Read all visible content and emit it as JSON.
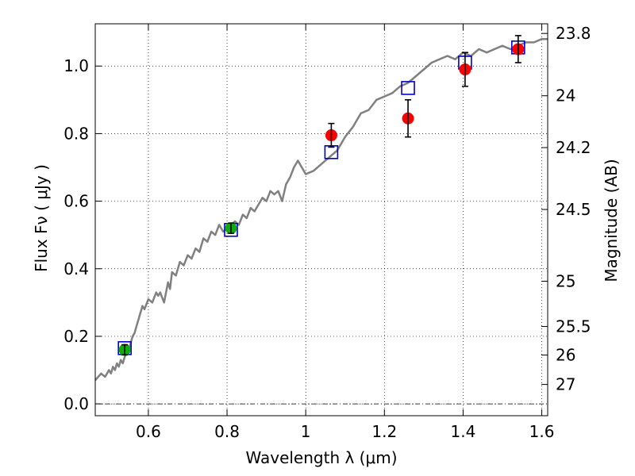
{
  "chart_data": {
    "type": "scatter",
    "xlabel": "Wavelength  λ (μm)",
    "ylabel": "Flux  Fν  ( μJy )",
    "y2label": "Magnitude (AB)",
    "xlim": [
      0.465,
      1.615
    ],
    "ylim": [
      -0.035,
      1.125
    ],
    "grid": true,
    "x_ticks": [
      0.6,
      0.8,
      1.0,
      1.2,
      1.4,
      1.6
    ],
    "x_tick_labels": [
      "0.6",
      "0.8",
      "1",
      "1.2",
      "1.4",
      "1.6"
    ],
    "y_ticks": [
      0.0,
      0.2,
      0.4,
      0.6,
      0.8,
      1.0
    ],
    "y_tick_labels": [
      "0.0",
      "0.2",
      "0.4",
      "0.6",
      "0.8",
      "1.0"
    ],
    "mag_ticks": [
      23.8,
      24,
      24.2,
      24.5,
      25,
      25.5,
      26,
      27
    ],
    "mag_tick_labels": [
      "23.8",
      "24",
      "24.2",
      "24.5",
      "25",
      "25.5",
      "26",
      "27"
    ],
    "zero_line": 0.0,
    "model_sed": {
      "color": "#808080",
      "x": [
        0.465,
        0.48,
        0.49,
        0.5,
        0.505,
        0.51,
        0.515,
        0.52,
        0.525,
        0.53,
        0.535,
        0.54,
        0.545,
        0.55,
        0.555,
        0.56,
        0.565,
        0.57,
        0.575,
        0.58,
        0.585,
        0.59,
        0.6,
        0.61,
        0.62,
        0.625,
        0.63,
        0.64,
        0.65,
        0.655,
        0.66,
        0.67,
        0.68,
        0.69,
        0.7,
        0.71,
        0.72,
        0.73,
        0.74,
        0.75,
        0.76,
        0.77,
        0.78,
        0.79,
        0.8,
        0.81,
        0.82,
        0.83,
        0.84,
        0.85,
        0.86,
        0.87,
        0.88,
        0.89,
        0.9,
        0.91,
        0.92,
        0.93,
        0.94,
        0.95,
        0.96,
        0.97,
        0.98,
        0.99,
        1.0,
        1.02,
        1.04,
        1.06,
        1.08,
        1.1,
        1.12,
        1.14,
        1.16,
        1.18,
        1.2,
        1.22,
        1.24,
        1.26,
        1.28,
        1.3,
        1.32,
        1.34,
        1.36,
        1.38,
        1.4,
        1.42,
        1.44,
        1.46,
        1.48,
        1.5,
        1.52,
        1.54,
        1.56,
        1.58,
        1.6,
        1.615
      ],
      "y": [
        0.07,
        0.09,
        0.08,
        0.1,
        0.09,
        0.11,
        0.1,
        0.12,
        0.11,
        0.13,
        0.12,
        0.14,
        0.15,
        0.16,
        0.18,
        0.2,
        0.21,
        0.23,
        0.25,
        0.27,
        0.29,
        0.28,
        0.31,
        0.3,
        0.33,
        0.32,
        0.33,
        0.3,
        0.36,
        0.34,
        0.39,
        0.38,
        0.42,
        0.41,
        0.44,
        0.43,
        0.46,
        0.45,
        0.49,
        0.48,
        0.51,
        0.5,
        0.53,
        0.51,
        0.52,
        0.53,
        0.54,
        0.53,
        0.56,
        0.55,
        0.58,
        0.57,
        0.59,
        0.61,
        0.6,
        0.63,
        0.62,
        0.63,
        0.6,
        0.65,
        0.67,
        0.7,
        0.72,
        0.7,
        0.68,
        0.69,
        0.71,
        0.73,
        0.75,
        0.79,
        0.82,
        0.86,
        0.87,
        0.9,
        0.91,
        0.92,
        0.94,
        0.95,
        0.97,
        0.99,
        1.01,
        1.02,
        1.03,
        1.02,
        1.04,
        1.03,
        1.05,
        1.04,
        1.05,
        1.06,
        1.05,
        1.06,
        1.07,
        1.07,
        1.08,
        1.08
      ]
    },
    "model_photometry": {
      "color": "#0000cc",
      "x": [
        0.54,
        0.81,
        1.065,
        1.26,
        1.405,
        1.54
      ],
      "y": [
        0.165,
        0.515,
        0.745,
        0.935,
        1.01,
        1.055
      ]
    },
    "observed_optical": {
      "color": "#11aa11",
      "x": [
        0.54,
        0.81
      ],
      "y": [
        0.16,
        0.52
      ],
      "err": [
        0.015,
        0.015
      ]
    },
    "observed_nir": {
      "color": "#ff0000",
      "x": [
        1.065,
        1.26,
        1.405,
        1.54
      ],
      "y": [
        0.795,
        0.845,
        0.99,
        1.05
      ],
      "err": [
        0.035,
        0.055,
        0.05,
        0.04
      ]
    }
  }
}
